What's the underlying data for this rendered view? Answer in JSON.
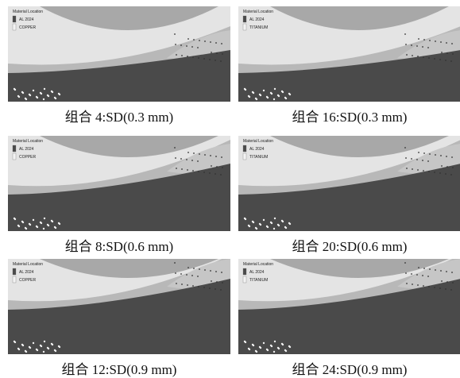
{
  "panels": [
    {
      "legend_title": "Material Location",
      "legend_items": [
        "AL 2024",
        "COPPER"
      ],
      "caption": "组合 4:SD(0.3 mm)"
    },
    {
      "legend_title": "Material Location",
      "legend_items": [
        "AL 2024",
        "TITANIUM"
      ],
      "caption": "组合 16:SD(0.3 mm)"
    },
    {
      "legend_title": "Material Location",
      "legend_items": [
        "AL 2024",
        "COPPER"
      ],
      "caption": "组合 8:SD(0.6 mm)"
    },
    {
      "legend_title": "Material Location",
      "legend_items": [
        "AL 2024",
        "TITANIUM"
      ],
      "caption": "组合 20:SD(0.6 mm)"
    },
    {
      "legend_title": "Material Location",
      "legend_items": [
        "AL 2024",
        "COPPER"
      ],
      "caption": "组合 12:SD(0.9 mm)"
    },
    {
      "legend_title": "Material Location",
      "legend_items": [
        "AL 2024",
        "TITANIUM"
      ],
      "caption": "组合 24:SD(0.9 mm)"
    }
  ]
}
